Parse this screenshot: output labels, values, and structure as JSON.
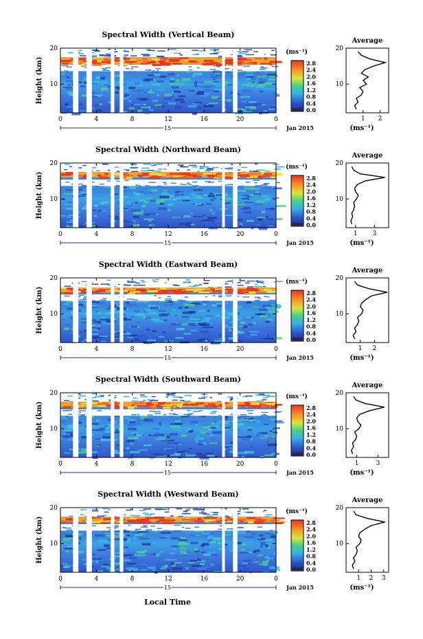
{
  "figure": {
    "bottom_xlabel": "Local Time",
    "date_label": "Jan 2015",
    "day_label": "15",
    "cbar_unit": "(ms⁻¹)",
    "cbar_ticks": [
      "2.8",
      "2.4",
      "2.0",
      "1.6",
      "1.2",
      "0.8",
      "0.4",
      "0.0"
    ],
    "ylabel": "Height (km)",
    "avg_title": "Average",
    "avg_unit": "(ms⁻¹)",
    "colors": {
      "low": "#1c2f8f",
      "mid": "#39b0e8",
      "high": "#ef3325",
      "gap": "#ffffff"
    }
  },
  "chart_data": [
    {
      "type": "heatmap",
      "title": "Spectral Width (Vertical Beam)",
      "x_ticks": [
        "0",
        "4",
        "8",
        "12",
        "16",
        "20",
        "0"
      ],
      "y_ticks": [
        "20",
        "10"
      ],
      "xlim": [
        0,
        24
      ],
      "ylim": [
        2,
        20
      ],
      "data_gaps_hours": [
        [
          1.4,
          2.0
        ],
        [
          2.9,
          3.5
        ],
        [
          5.6,
          6.0
        ],
        [
          6.6,
          7.0
        ],
        [
          18.0,
          18.3
        ],
        [
          19.2,
          19.7
        ]
      ],
      "high_layer_km": [
        15.5,
        17.5
      ],
      "avg_profile": {
        "xlabel_ticks": [
          "1",
          "2"
        ],
        "xlim": [
          0,
          2.5
        ],
        "height": [
          3,
          4,
          5,
          6,
          7,
          8,
          9,
          10,
          11,
          12,
          13,
          14,
          15,
          16,
          17,
          18,
          19
        ],
        "width": [
          0.6,
          0.5,
          0.7,
          0.6,
          0.9,
          1.0,
          0.8,
          1.2,
          1.0,
          1.3,
          0.9,
          1.1,
          1.6,
          2.3,
          1.4,
          0.9,
          0.7
        ]
      }
    },
    {
      "type": "heatmap",
      "title": "Spectral Width (Northward Beam)",
      "x_ticks": [
        "0",
        "4",
        "8",
        "12",
        "16",
        "20",
        "0"
      ],
      "y_ticks": [
        "20",
        "10"
      ],
      "xlim": [
        0,
        24
      ],
      "ylim": [
        2,
        20
      ],
      "data_gaps_hours": [
        [
          1.4,
          2.0
        ],
        [
          2.9,
          3.5
        ],
        [
          5.6,
          6.0
        ],
        [
          6.6,
          7.0
        ],
        [
          18.0,
          18.3
        ],
        [
          19.2,
          19.7
        ]
      ],
      "high_layer_km": [
        16.0,
        17.5
      ],
      "avg_profile": {
        "xlabel_ticks": [
          "1",
          "3"
        ],
        "xlim": [
          0,
          4.5
        ],
        "height": [
          3,
          4,
          5,
          6,
          7,
          8,
          9,
          10,
          11,
          12,
          13,
          14,
          15,
          16,
          17,
          18,
          19
        ],
        "width": [
          0.6,
          0.5,
          0.7,
          0.6,
          0.8,
          0.9,
          0.8,
          1.1,
          1.3,
          1.0,
          0.9,
          1.2,
          2.0,
          4.1,
          1.5,
          0.8,
          0.6
        ]
      }
    },
    {
      "type": "heatmap",
      "title": "Spectral Width (Eastward Beam)",
      "x_ticks": [
        "0",
        "4",
        "8",
        "12",
        "16",
        "20",
        "0"
      ],
      "y_ticks": [
        "20",
        "10"
      ],
      "xlim": [
        0,
        24
      ],
      "ylim": [
        2,
        20
      ],
      "data_gaps_hours": [
        [
          1.4,
          2.0
        ],
        [
          2.9,
          3.5
        ],
        [
          5.6,
          6.0
        ],
        [
          6.6,
          7.0
        ],
        [
          18.0,
          18.3
        ],
        [
          19.2,
          19.7
        ]
      ],
      "high_layer_km": [
        16.0,
        17.3
      ],
      "avg_profile": {
        "xlabel_ticks": [
          "1",
          "2"
        ],
        "xlim": [
          0,
          3.0
        ],
        "height": [
          3,
          4,
          5,
          6,
          7,
          8,
          9,
          10,
          11,
          12,
          13,
          14,
          15,
          16,
          17,
          18,
          19
        ],
        "width": [
          0.6,
          0.5,
          0.7,
          0.6,
          0.8,
          0.9,
          0.8,
          1.1,
          1.2,
          1.0,
          1.1,
          1.4,
          1.8,
          2.9,
          1.6,
          0.8,
          0.6
        ]
      }
    },
    {
      "type": "heatmap",
      "title": "Spectral Width (Southward Beam)",
      "x_ticks": [
        "0",
        "4",
        "8",
        "12",
        "16",
        "20",
        "0"
      ],
      "y_ticks": [
        "20",
        "10"
      ],
      "xlim": [
        0,
        24
      ],
      "ylim": [
        2,
        20
      ],
      "data_gaps_hours": [
        [
          1.4,
          2.0
        ],
        [
          2.9,
          3.5
        ],
        [
          5.6,
          6.0
        ],
        [
          6.6,
          7.0
        ],
        [
          18.0,
          18.3
        ],
        [
          19.2,
          19.7
        ]
      ],
      "high_layer_km": [
        16.0,
        17.5
      ],
      "avg_profile": {
        "xlabel_ticks": [
          "1",
          "3"
        ],
        "xlim": [
          0,
          4.0
        ],
        "height": [
          3,
          4,
          5,
          6,
          7,
          8,
          9,
          10,
          11,
          12,
          13,
          14,
          15,
          16,
          17,
          18,
          19
        ],
        "width": [
          0.6,
          0.5,
          0.7,
          0.6,
          0.9,
          1.0,
          0.8,
          1.2,
          1.4,
          1.1,
          1.0,
          1.3,
          2.2,
          3.6,
          1.8,
          0.9,
          0.7
        ]
      }
    },
    {
      "type": "heatmap",
      "title": "Spectral Width (Westward Beam)",
      "x_ticks": [
        "0",
        "4",
        "8",
        "12",
        "16",
        "20",
        "0"
      ],
      "y_ticks": [
        "20",
        "10"
      ],
      "xlim": [
        0,
        24
      ],
      "ylim": [
        2,
        20
      ],
      "data_gaps_hours": [
        [
          1.4,
          2.0
        ],
        [
          2.9,
          3.5
        ],
        [
          5.6,
          6.0
        ],
        [
          6.6,
          7.0
        ],
        [
          18.0,
          18.3
        ],
        [
          19.2,
          19.7
        ]
      ],
      "high_layer_km": [
        16.0,
        17.5
      ],
      "avg_profile": {
        "xlabel_ticks": [
          "1",
          "2",
          "3"
        ],
        "xlim": [
          0,
          3.4
        ],
        "height": [
          3,
          4,
          5,
          6,
          7,
          8,
          9,
          10,
          11,
          12,
          13,
          14,
          15,
          16,
          17,
          18,
          19
        ],
        "width": [
          0.6,
          0.5,
          0.7,
          0.6,
          0.8,
          0.9,
          0.8,
          1.1,
          1.2,
          1.0,
          1.1,
          1.5,
          2.0,
          3.1,
          1.7,
          0.8,
          0.6
        ]
      }
    }
  ]
}
